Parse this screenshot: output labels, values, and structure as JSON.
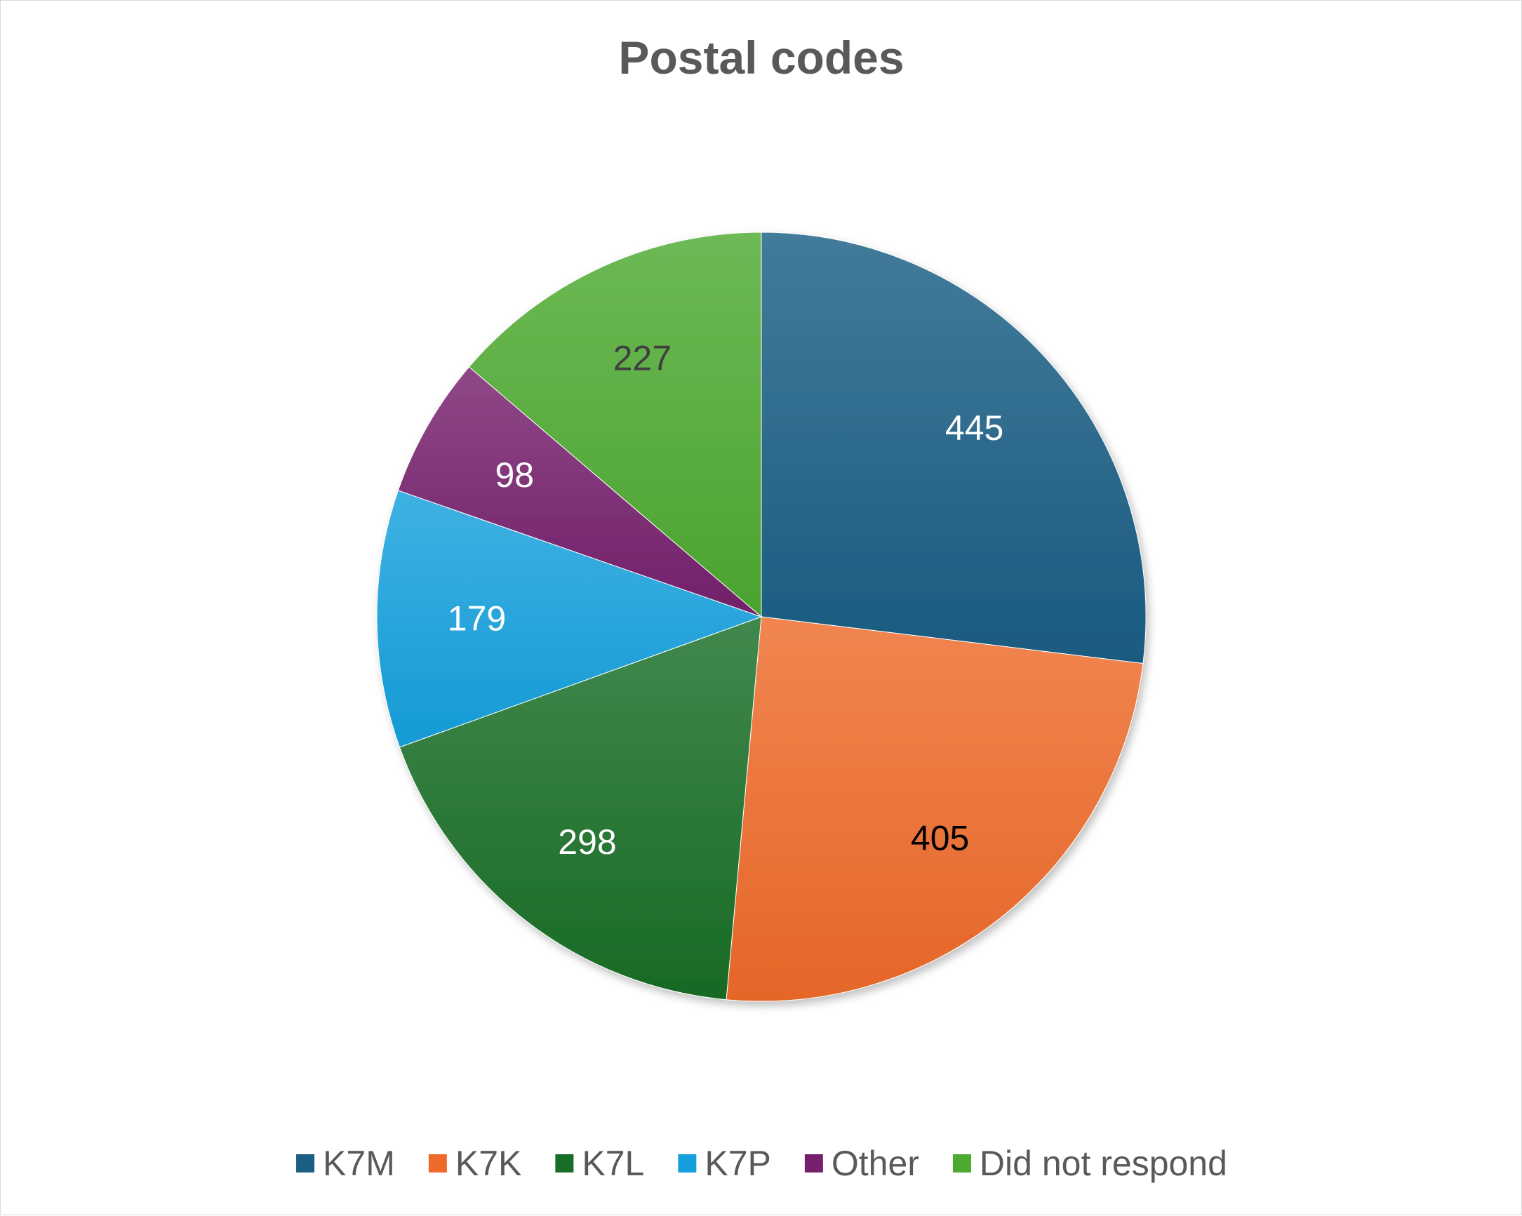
{
  "chart_data": {
    "type": "pie",
    "title": "Postal codes",
    "slices": [
      {
        "label": "K7M",
        "value": 445,
        "color": "#1a5e84",
        "label_color": "#ffffff"
      },
      {
        "label": "K7K",
        "value": 405,
        "color": "#ee6a2a",
        "label_color": "#000000"
      },
      {
        "label": "K7L",
        "value": 298,
        "color": "#186e26",
        "label_color": "#ffffff"
      },
      {
        "label": "K7P",
        "value": 179,
        "color": "#15a0dd",
        "label_color": "#ffffff"
      },
      {
        "label": "Other",
        "value": 98,
        "color": "#76206d",
        "label_color": "#ffffff"
      },
      {
        "label": "Did not respond",
        "value": 227,
        "color": "#4daa30",
        "label_color": "#404040"
      }
    ],
    "start_angle_deg": 0,
    "direction": "clockwise",
    "data_labels": "values",
    "legend_position": "bottom"
  }
}
